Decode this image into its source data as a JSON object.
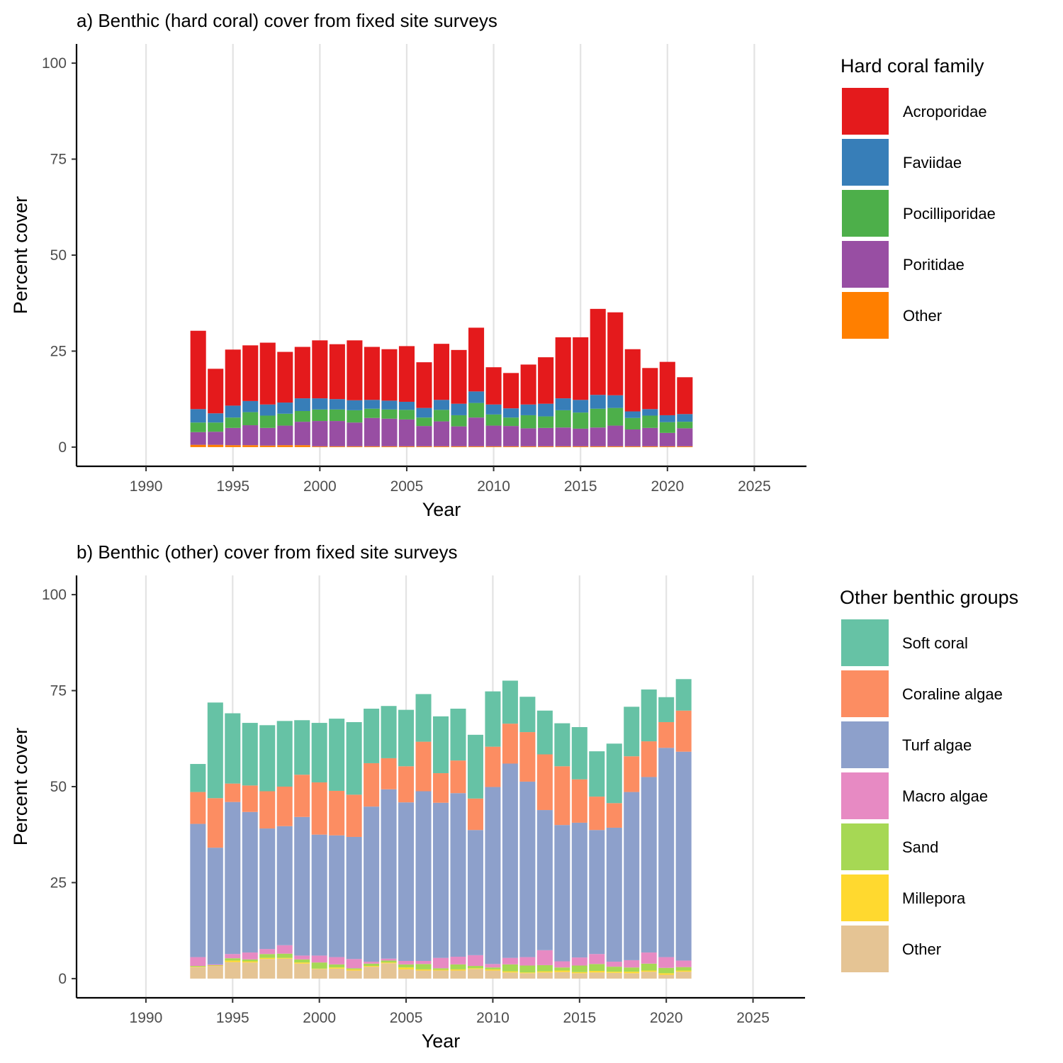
{
  "figure": {
    "panels": [
      {
        "title": "a) Benthic (hard coral) cover from fixed site surveys"
      },
      {
        "title": "b) Benthic (other) cover from fixed site surveys"
      }
    ]
  },
  "chart_data": [
    {
      "type": "bar",
      "stacked": true,
      "title": "a) Benthic (hard coral) cover from fixed site surveys",
      "xlabel": "Year",
      "ylabel": "Percent cover",
      "xlim": [
        1986,
        2028
      ],
      "ylim": [
        -5,
        105
      ],
      "x_ticks": [
        1990,
        1995,
        2000,
        2005,
        2010,
        2015,
        2020,
        2025
      ],
      "y_ticks": [
        0,
        25,
        50,
        75,
        100
      ],
      "grid": "vertical major",
      "legend_title": "Hard coral family",
      "legend_position": "right",
      "x": [
        1993,
        1994,
        1995,
        1996,
        1997,
        1998,
        1999,
        2000,
        2001,
        2002,
        2003,
        2004,
        2005,
        2006,
        2007,
        2008,
        2009,
        2010,
        2011,
        2012,
        2013,
        2014,
        2015,
        2016,
        2017,
        2018,
        2019,
        2020,
        2021
      ],
      "stack_order_bottom_to_top": [
        "Other",
        "Poritidae",
        "Pocilliporidae",
        "Faviidae",
        "Acroporidae"
      ],
      "series": [
        {
          "name": "Acroporidae",
          "color": "#E41A1C",
          "values": [
            20.4,
            11.6,
            14.6,
            14.5,
            16.1,
            13.2,
            13.4,
            15.1,
            14.3,
            15.6,
            13.8,
            13.4,
            14.5,
            11.9,
            14.6,
            14.0,
            16.6,
            9.7,
            9.2,
            10.4,
            12.1,
            15.9,
            16.3,
            22.4,
            21.6,
            16.2,
            10.7,
            13.9,
            9.6
          ]
        },
        {
          "name": "Faviidae",
          "color": "#377EB8",
          "values": [
            3.5,
            2.4,
            3.1,
            2.9,
            2.9,
            2.9,
            3.3,
            2.9,
            2.7,
            2.6,
            2.3,
            2.3,
            2.1,
            2.5,
            2.6,
            3.0,
            3.0,
            2.6,
            2.4,
            2.8,
            3.3,
            3.1,
            3.3,
            3.6,
            3.3,
            1.7,
            1.7,
            1.8,
            2.0
          ]
        },
        {
          "name": "Pocilliporidae",
          "color": "#4DAF4A",
          "values": [
            2.5,
            2.4,
            2.7,
            3.4,
            3.2,
            3.1,
            2.8,
            3.0,
            3.0,
            3.2,
            2.4,
            2.4,
            2.5,
            2.2,
            3.0,
            2.9,
            3.8,
            2.9,
            2.2,
            3.4,
            3.0,
            4.5,
            4.2,
            4.9,
            4.6,
            3.0,
            3.2,
            2.8,
            1.7
          ]
        },
        {
          "name": "Poritidae",
          "color": "#984EA3",
          "values": [
            3.3,
            3.4,
            4.5,
            5.2,
            4.6,
            5.1,
            6.1,
            6.6,
            6.6,
            6.2,
            7.4,
            7.2,
            7.0,
            5.3,
            6.5,
            5.2,
            7.5,
            5.4,
            5.3,
            4.7,
            4.8,
            4.9,
            4.6,
            4.9,
            5.4,
            4.4,
            4.8,
            3.5,
            4.7
          ]
        },
        {
          "name": "Other",
          "color": "#FF7F00",
          "values": [
            0.6,
            0.6,
            0.5,
            0.5,
            0.4,
            0.5,
            0.5,
            0.2,
            0.2,
            0.2,
            0.2,
            0.2,
            0.2,
            0.2,
            0.2,
            0.2,
            0.2,
            0.2,
            0.2,
            0.2,
            0.2,
            0.2,
            0.2,
            0.2,
            0.2,
            0.2,
            0.2,
            0.2,
            0.2
          ]
        }
      ]
    },
    {
      "type": "bar",
      "stacked": true,
      "title": "b) Benthic (other) cover from fixed site surveys",
      "xlabel": "Year",
      "ylabel": "Percent cover",
      "xlim": [
        1986,
        2028
      ],
      "ylim": [
        -5,
        105
      ],
      "x_ticks": [
        1990,
        1995,
        2000,
        2005,
        2010,
        2015,
        2020,
        2025
      ],
      "y_ticks": [
        0,
        25,
        50,
        75,
        100
      ],
      "grid": "vertical major",
      "legend_title": "Other benthic groups",
      "legend_position": "right",
      "x": [
        1993,
        1994,
        1995,
        1996,
        1997,
        1998,
        1999,
        2000,
        2001,
        2002,
        2003,
        2004,
        2005,
        2006,
        2007,
        2008,
        2009,
        2010,
        2011,
        2012,
        2013,
        2014,
        2015,
        2016,
        2017,
        2018,
        2019,
        2020,
        2021
      ],
      "stack_order_bottom_to_top": [
        "Other",
        "Millepora",
        "Sand",
        "Macro algae",
        "Turf algae",
        "Coraline algae",
        "Soft coral"
      ],
      "series": [
        {
          "name": "Soft coral",
          "color": "#66C2A5",
          "values": [
            7.3,
            24.9,
            18.3,
            16.3,
            17.2,
            17.1,
            14.2,
            15.5,
            18.8,
            18.9,
            14.2,
            13.6,
            14.7,
            12.4,
            14.8,
            13.5,
            16.6,
            14.4,
            11.2,
            9.2,
            11.4,
            11.2,
            13.6,
            11.8,
            15.5,
            12.9,
            13.5,
            6.5,
            8.2
          ]
        },
        {
          "name": "Coraline algae",
          "color": "#FC8D62",
          "values": [
            8.3,
            12.9,
            4.8,
            6.9,
            9.7,
            10.3,
            11.0,
            13.6,
            11.6,
            11.0,
            11.3,
            8.1,
            9.4,
            12.9,
            7.7,
            8.5,
            8.2,
            10.5,
            10.4,
            12.9,
            14.5,
            15.3,
            11.3,
            8.7,
            6.4,
            9.3,
            9.3,
            6.7,
            10.7
          ]
        },
        {
          "name": "Turf algae",
          "color": "#8DA0CB",
          "values": [
            34.7,
            30.4,
            39.6,
            36.6,
            31.4,
            31.0,
            36.1,
            31.5,
            31.7,
            31.8,
            40.4,
            44.1,
            41.3,
            44.2,
            40.4,
            42.6,
            32.6,
            46.1,
            50.6,
            45.7,
            36.5,
            35.5,
            35.1,
            32.3,
            34.9,
            43.8,
            45.7,
            54.5,
            54.4
          ]
        },
        {
          "name": "Macro algae",
          "color": "#E78AC3",
          "values": [
            2.3,
            0.2,
            1.1,
            1.8,
            1.3,
            2.2,
            1.0,
            1.8,
            1.9,
            2.4,
            0.5,
            0.5,
            0.9,
            0.8,
            2.7,
            2.0,
            2.8,
            0.9,
            1.7,
            2.2,
            3.9,
            1.6,
            2.1,
            2.6,
            1.3,
            1.9,
            2.9,
            2.8,
            1.7
          ]
        },
        {
          "name": "Sand",
          "color": "#A6D854",
          "values": [
            0.2,
            0.1,
            0.6,
            0.5,
            1.0,
            1.1,
            0.8,
            1.6,
            0.8,
            0.3,
            0.6,
            0.5,
            0.8,
            1.4,
            0.4,
            1.3,
            0.6,
            0.5,
            1.8,
            1.8,
            1.6,
            0.8,
            1.7,
            1.8,
            1.3,
            1.1,
            1.8,
            1.4,
            0.9
          ]
        },
        {
          "name": "Millepora",
          "color": "#FFD92F",
          "values": [
            0.1,
            0.1,
            0.4,
            0.3,
            0.3,
            0.2,
            0.3,
            0.1,
            0.3,
            0.3,
            0.2,
            0.2,
            0.5,
            0.3,
            0.2,
            0.3,
            0.2,
            0.3,
            0.3,
            0.2,
            0.3,
            0.4,
            0.3,
            0.4,
            0.3,
            0.4,
            0.3,
            0.4,
            0.3
          ]
        },
        {
          "name": "Other",
          "color": "#E5C494",
          "values": [
            3.0,
            3.3,
            4.3,
            4.2,
            5.1,
            5.2,
            3.9,
            2.5,
            2.6,
            2.1,
            3.1,
            4.0,
            2.4,
            2.1,
            2.1,
            2.1,
            2.5,
            2.1,
            1.6,
            1.4,
            1.6,
            1.7,
            1.4,
            1.6,
            1.5,
            1.4,
            1.8,
            1.0,
            1.8
          ]
        }
      ]
    }
  ]
}
